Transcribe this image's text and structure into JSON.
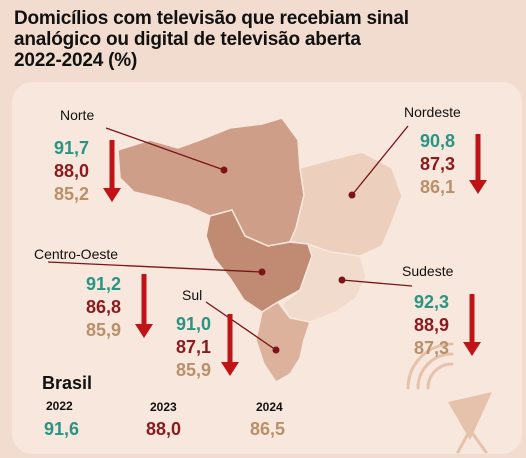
{
  "title": {
    "line1": "Domicílios com televisão que recebiam sinal",
    "line2": "analógico ou digital de televisão aberta",
    "line3": "2022-2024 (%)"
  },
  "colors": {
    "y2022": "#2a9484",
    "y2023": "#8b1a1f",
    "y2024": "#b8906a",
    "arrow": "#c01318",
    "map_north": "#cf9e88",
    "map_northeast": "#ecd0bd",
    "map_centerwest": "#c08a73",
    "map_southeast": "#f0dbcd",
    "map_south": "#dcb29d"
  },
  "chart_data": {
    "type": "table",
    "years": [
      "2022",
      "2023",
      "2024"
    ],
    "regions": [
      {
        "name": "Norte",
        "values": [
          "91,7",
          "88,0",
          "85,2"
        ]
      },
      {
        "name": "Nordeste",
        "values": [
          "90,8",
          "87,3",
          "86,1"
        ]
      },
      {
        "name": "Centro-Oeste",
        "values": [
          "91,2",
          "86,8",
          "85,9"
        ]
      },
      {
        "name": "Sul",
        "values": [
          "91,0",
          "87,1",
          "85,9"
        ]
      },
      {
        "name": "Sudeste",
        "values": [
          "92,3",
          "88,9",
          "87,3"
        ]
      }
    ],
    "national": {
      "name": "Brasil",
      "years": [
        "2022",
        "2023",
        "2024"
      ],
      "values": [
        "91,6",
        "88,0",
        "86,5"
      ]
    }
  }
}
